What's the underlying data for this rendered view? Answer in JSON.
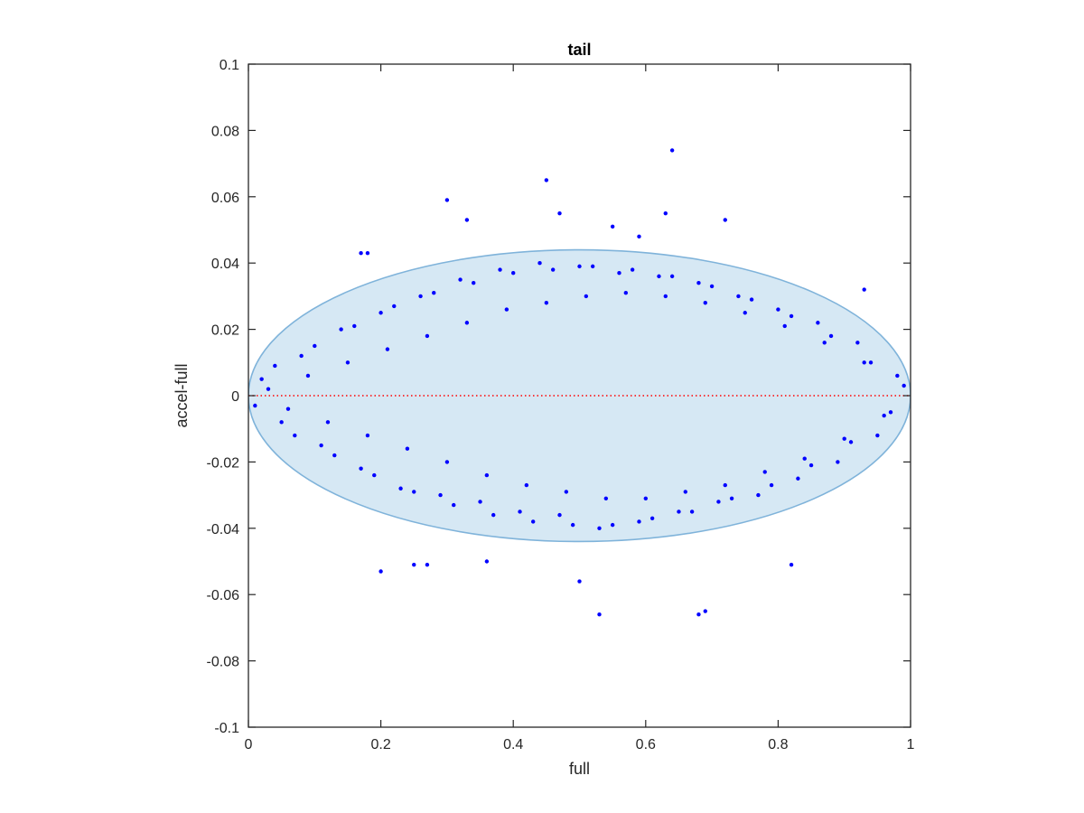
{
  "chart_data": {
    "type": "scatter",
    "title": "tail",
    "xlabel": "full",
    "ylabel": "accel-full",
    "xlim": [
      0,
      1
    ],
    "ylim": [
      -0.1,
      0.1
    ],
    "xticks": [
      "0",
      "0.2",
      "0.4",
      "0.6",
      "0.8",
      "1"
    ],
    "yticks": [
      "-0.1",
      "-0.08",
      "-0.06",
      "-0.04",
      "-0.02",
      "0",
      "0.02",
      "0.04",
      "0.06",
      "0.08",
      "0.1"
    ],
    "grid": false,
    "legend": "none",
    "series": [
      {
        "color": "#0000ff",
        "marker": "dot",
        "x": [
          0.02,
          0.05,
          0.08,
          0.11,
          0.14,
          0.17,
          0.2,
          0.23,
          0.26,
          0.29,
          0.32,
          0.35,
          0.38,
          0.41,
          0.44,
          0.47,
          0.5,
          0.53,
          0.56,
          0.59,
          0.62,
          0.65,
          0.68,
          0.71,
          0.74,
          0.77,
          0.8,
          0.83,
          0.86,
          0.89,
          0.92,
          0.95,
          0.98,
          0.01,
          0.04,
          0.07,
          0.1,
          0.13,
          0.16,
          0.19,
          0.22,
          0.25,
          0.28,
          0.31,
          0.34,
          0.37,
          0.4,
          0.43,
          0.46,
          0.49,
          0.52,
          0.55,
          0.58,
          0.61,
          0.64,
          0.67,
          0.7,
          0.73,
          0.76,
          0.79,
          0.82,
          0.85,
          0.88,
          0.91,
          0.94,
          0.97,
          0.03,
          0.06,
          0.09,
          0.12,
          0.15,
          0.18,
          0.21,
          0.24,
          0.27,
          0.3,
          0.33,
          0.36,
          0.39,
          0.42,
          0.45,
          0.48,
          0.51,
          0.54,
          0.57,
          0.6,
          0.63,
          0.66,
          0.69,
          0.72,
          0.75,
          0.78,
          0.81,
          0.84,
          0.87,
          0.9,
          0.93,
          0.96,
          0.99,
          0.64,
          0.45,
          0.3,
          0.33,
          0.47,
          0.55,
          0.63,
          0.2,
          0.53,
          0.68,
          0.69,
          0.5,
          0.82,
          0.36,
          0.27,
          0.25,
          0.72,
          0.59,
          0.17,
          0.18,
          0.93
        ],
        "y": [
          0.005,
          -0.008,
          0.012,
          -0.015,
          0.02,
          -0.022,
          0.025,
          -0.028,
          0.03,
          -0.03,
          0.035,
          -0.032,
          0.038,
          -0.035,
          0.04,
          -0.036,
          0.039,
          -0.04,
          0.037,
          -0.038,
          0.036,
          -0.035,
          0.034,
          -0.032,
          0.03,
          -0.03,
          0.026,
          -0.025,
          0.022,
          -0.02,
          0.016,
          -0.012,
          0.006,
          -0.003,
          0.009,
          -0.012,
          0.015,
          -0.018,
          0.021,
          -0.024,
          0.027,
          -0.029,
          0.031,
          -0.033,
          0.034,
          -0.036,
          0.037,
          -0.038,
          0.038,
          -0.039,
          0.039,
          -0.039,
          0.038,
          -0.037,
          0.036,
          -0.035,
          0.033,
          -0.031,
          0.029,
          -0.027,
          0.024,
          -0.021,
          0.018,
          -0.014,
          0.01,
          -0.005,
          0.002,
          -0.004,
          0.006,
          -0.008,
          0.01,
          -0.012,
          0.014,
          -0.016,
          0.018,
          -0.02,
          0.022,
          -0.024,
          0.026,
          -0.027,
          0.028,
          -0.029,
          0.03,
          -0.031,
          0.031,
          -0.031,
          0.03,
          -0.029,
          0.028,
          -0.027,
          0.025,
          -0.023,
          0.021,
          -0.019,
          0.016,
          -0.013,
          0.01,
          -0.006,
          0.003,
          0.074,
          0.065,
          0.059,
          0.053,
          0.055,
          0.051,
          0.055,
          -0.053,
          -0.066,
          -0.066,
          -0.065,
          -0.056,
          -0.051,
          -0.05,
          -0.051,
          -0.051,
          0.053,
          0.048,
          0.043,
          0.043,
          0.032
        ]
      }
    ],
    "ellipse": {
      "center": [
        0.5,
        0.0
      ],
      "radius_x": 0.5,
      "radius_y": 0.044,
      "fill": "#d6e8f4",
      "stroke": "#7fb3da"
    },
    "reference_line": {
      "y": 0,
      "color": "#ff0000",
      "style": "dotted"
    },
    "colors": {
      "axis": "#262626",
      "background": "#ffffff"
    }
  }
}
